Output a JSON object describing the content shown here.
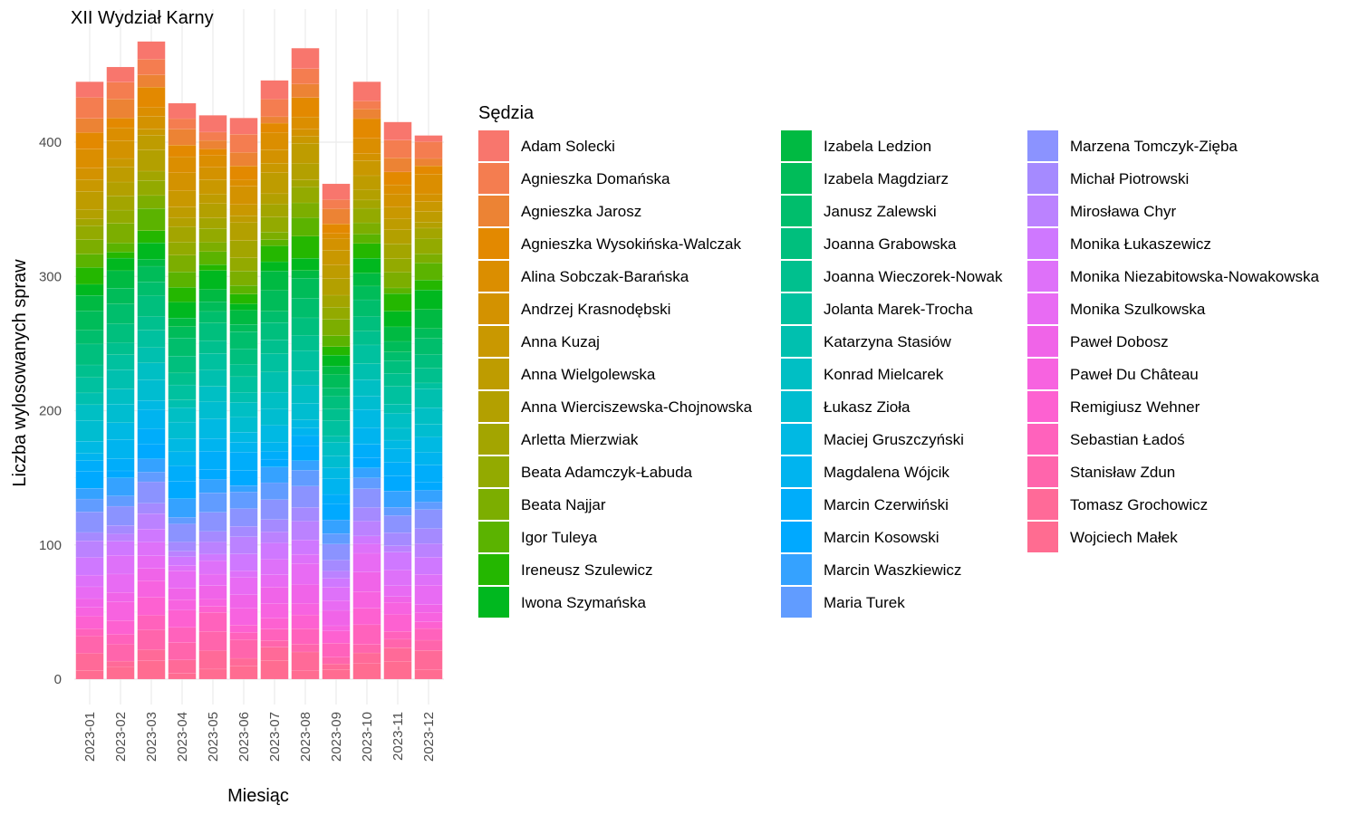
{
  "chart_data": {
    "type": "bar",
    "stacked": true,
    "title": "XII Wydział Karny",
    "xlabel": "Miesiąc",
    "ylabel": "Liczba wylosowanych spraw",
    "ylim": [
      0,
      480
    ],
    "yticks": [
      0,
      100,
      200,
      300,
      400
    ],
    "grid": true,
    "legend_title": "Sędzia",
    "legend_position": "right",
    "categories": [
      "2023-01",
      "2023-02",
      "2023-03",
      "2023-04",
      "2023-05",
      "2023-06",
      "2023-07",
      "2023-08",
      "2023-09",
      "2023-10",
      "2023-11",
      "2023-12"
    ],
    "totals": [
      445,
      456,
      475,
      429,
      420,
      418,
      446,
      470,
      369,
      445,
      415,
      405
    ],
    "series": [
      {
        "name": "Adam Solecki",
        "color": "#F8766D"
      },
      {
        "name": "Agnieszka Domańska",
        "color": "#F47D50"
      },
      {
        "name": "Agnieszka Jarosz",
        "color": "#EC8334"
      },
      {
        "name": "Agnieszka Wysokińska-Walczak",
        "color": "#E38900"
      },
      {
        "name": "Alina Sobczak-Barańska",
        "color": "#DB8E00"
      },
      {
        "name": "Andrzej Krasnodębski",
        "color": "#D39200"
      },
      {
        "name": "Anna Kuzaj",
        "color": "#C99800"
      },
      {
        "name": "Anna Wielgolewska",
        "color": "#BE9C00"
      },
      {
        "name": "Anna Wierciszewska-Chojnowska",
        "color": "#B3A000"
      },
      {
        "name": "Arletta Mierzwiak",
        "color": "#A3A500"
      },
      {
        "name": "Beata Adamczyk-Łabuda",
        "color": "#93AA00"
      },
      {
        "name": "Beata Najjar",
        "color": "#7CAE00"
      },
      {
        "name": "Igor Tuleya",
        "color": "#5BB300"
      },
      {
        "name": "Ireneusz Szulewicz",
        "color": "#24B700"
      },
      {
        "name": "Iwona Szymańska",
        "color": "#00B81F"
      },
      {
        "name": "Izabela Ledzion",
        "color": "#00BA42"
      },
      {
        "name": "Izabela Magdziarz",
        "color": "#00BC59"
      },
      {
        "name": "Janusz Zalewski",
        "color": "#00BE6C"
      },
      {
        "name": "Joanna Grabowska",
        "color": "#00BF7D"
      },
      {
        "name": "Joanna Wieczorek-Nowak",
        "color": "#00C08E"
      },
      {
        "name": "Jolanta Marek-Trocha",
        "color": "#00C19F"
      },
      {
        "name": "Katarzyna Stasiów",
        "color": "#00C0AF"
      },
      {
        "name": "Konrad Mielcarek",
        "color": "#00BFC4"
      },
      {
        "name": "Łukasz Zioła",
        "color": "#00BDD0"
      },
      {
        "name": "Maciej Gruszczyński",
        "color": "#00B9E3"
      },
      {
        "name": "Magdalena Wójcik",
        "color": "#00B4EF"
      },
      {
        "name": "Marcin Czerwiński",
        "color": "#00ADFA"
      },
      {
        "name": "Marcin Kosowski",
        "color": "#00A9FF"
      },
      {
        "name": "Marcin Waszkiewicz",
        "color": "#35A2FF"
      },
      {
        "name": "Maria Turek",
        "color": "#619CFF"
      },
      {
        "name": "Marzena Tomczyk-Zięba",
        "color": "#8B93FF"
      },
      {
        "name": "Michał Piotrowski",
        "color": "#A58AFF"
      },
      {
        "name": "Mirosława Chyr",
        "color": "#BB82FF"
      },
      {
        "name": "Monika Łukaszewicz",
        "color": "#CF78FF"
      },
      {
        "name": "Monika Niezabitowska-Nowakowska",
        "color": "#DE71F9"
      },
      {
        "name": "Monika Szulkowska",
        "color": "#E86BF3"
      },
      {
        "name": "Paweł Dobosz",
        "color": "#F064E8"
      },
      {
        "name": "Paweł Du Château",
        "color": "#F763E0"
      },
      {
        "name": "Remigiusz Wehner",
        "color": "#FD61D1"
      },
      {
        "name": "Sebastian Ładoś",
        "color": "#FF62BC"
      },
      {
        "name": "Stanisław Zdun",
        "color": "#FF65AC"
      },
      {
        "name": "Tomasz Grochowicz",
        "color": "#FF6A98"
      },
      {
        "name": "Wojciech Małek",
        "color": "#FF6C91"
      }
    ]
  }
}
